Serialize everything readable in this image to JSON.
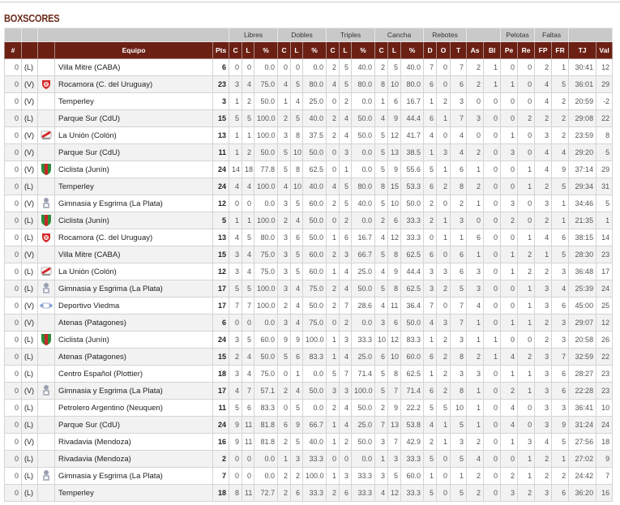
{
  "title": "BOXSCORES",
  "colors": {
    "header_bg": "#6b2013",
    "title": "#6b2a1a",
    "group_bg": "#c9c9c9"
  },
  "groups": [
    "",
    "",
    "",
    "Libres",
    "Dobles",
    "Triples",
    "Cancha",
    "Rebotes",
    "",
    "Pelotas",
    "Faltas",
    ""
  ],
  "columns": [
    "#",
    "",
    "",
    "Equipo",
    "Pts",
    "C",
    "L",
    "%",
    "C",
    "L",
    "%",
    "C",
    "L",
    "%",
    "C",
    "L",
    "%",
    "D",
    "O",
    "T",
    "As",
    "Bl",
    "Pe",
    "Re",
    "FP",
    "FR",
    "TJ",
    "Val"
  ],
  "rows": [
    [
      "0",
      "(L)",
      "",
      "Villa Mitre (CABA)",
      "6",
      "0",
      "0",
      "0.0",
      "0",
      "0",
      "0.0",
      "2",
      "5",
      "40.0",
      "2",
      "5",
      "40.0",
      "7",
      "0",
      "7",
      "2",
      "1",
      "0",
      "0",
      "2",
      "1",
      "30:41",
      "12"
    ],
    [
      "0",
      "(V)",
      "rocamora-logo",
      "Rocamora (C. del Uruguay)",
      "23",
      "3",
      "4",
      "75.0",
      "4",
      "5",
      "80.0",
      "4",
      "5",
      "80.0",
      "8",
      "10",
      "80.0",
      "6",
      "0",
      "6",
      "2",
      "1",
      "1",
      "0",
      "4",
      "5",
      "36:01",
      "29"
    ],
    [
      "0",
      "(V)",
      "",
      "Temperley",
      "3",
      "1",
      "2",
      "50.0",
      "1",
      "4",
      "25.0",
      "0",
      "2",
      "0.0",
      "1",
      "6",
      "16.7",
      "1",
      "2",
      "3",
      "0",
      "0",
      "0",
      "0",
      "4",
      "2",
      "20:59",
      "-2"
    ],
    [
      "0",
      "(L)",
      "",
      "Parque Sur (CdU)",
      "15",
      "5",
      "5",
      "100.0",
      "2",
      "5",
      "40.0",
      "2",
      "4",
      "50.0",
      "4",
      "9",
      "44.4",
      "6",
      "1",
      "7",
      "3",
      "0",
      "0",
      "2",
      "2",
      "2",
      "29:08",
      "22"
    ],
    [
      "0",
      "(V)",
      "la-union-logo",
      "La Unión (Colón)",
      "13",
      "1",
      "1",
      "100.0",
      "3",
      "8",
      "37.5",
      "2",
      "4",
      "50.0",
      "5",
      "12",
      "41.7",
      "4",
      "0",
      "4",
      "0",
      "0",
      "1",
      "0",
      "3",
      "2",
      "23:59",
      "8"
    ],
    [
      "0",
      "(V)",
      "",
      "Parque Sur (CdU)",
      "11",
      "1",
      "2",
      "50.0",
      "5",
      "10",
      "50.0",
      "0",
      "3",
      "0.0",
      "5",
      "13",
      "38.5",
      "1",
      "3",
      "4",
      "2",
      "0",
      "3",
      "0",
      "4",
      "4",
      "29:20",
      "5"
    ],
    [
      "0",
      "(V)",
      "ciclista-logo",
      "Ciclista (Junín)",
      "24",
      "14",
      "18",
      "77.8",
      "5",
      "8",
      "62.5",
      "0",
      "1",
      "0.0",
      "5",
      "9",
      "55.6",
      "5",
      "1",
      "6",
      "1",
      "0",
      "0",
      "1",
      "4",
      "9",
      "37:14",
      "29"
    ],
    [
      "0",
      "(L)",
      "",
      "Temperley",
      "24",
      "4",
      "4",
      "100.0",
      "4",
      "10",
      "40.0",
      "4",
      "5",
      "80.0",
      "8",
      "15",
      "53.3",
      "6",
      "2",
      "8",
      "2",
      "0",
      "0",
      "1",
      "2",
      "5",
      "29:34",
      "31"
    ],
    [
      "0",
      "(V)",
      "gimnasia-logo",
      "Gimnasia y Esgrima (La Plata)",
      "12",
      "0",
      "0",
      "0.0",
      "3",
      "5",
      "60.0",
      "2",
      "5",
      "40.0",
      "5",
      "10",
      "50.0",
      "2",
      "0",
      "2",
      "1",
      "0",
      "3",
      "0",
      "3",
      "1",
      "34:46",
      "5"
    ],
    [
      "0",
      "(L)",
      "ciclista-logo",
      "Ciclista (Junín)",
      "5",
      "1",
      "1",
      "100.0",
      "2",
      "4",
      "50.0",
      "0",
      "2",
      "0.0",
      "2",
      "6",
      "33.3",
      "2",
      "1",
      "3",
      "0",
      "0",
      "2",
      "0",
      "2",
      "1",
      "21:35",
      "1"
    ],
    [
      "0",
      "(L)",
      "rocamora-logo",
      "Rocamora (C. del Uruguay)",
      "13",
      "4",
      "5",
      "80.0",
      "3",
      "6",
      "50.0",
      "1",
      "6",
      "16.7",
      "4",
      "12",
      "33.3",
      "0",
      "1",
      "1",
      "6",
      "0",
      "0",
      "1",
      "4",
      "6",
      "38:15",
      "14"
    ],
    [
      "0",
      "(V)",
      "",
      "Villa Mitre (CABA)",
      "15",
      "3",
      "4",
      "75.0",
      "3",
      "5",
      "60.0",
      "2",
      "3",
      "66.7",
      "5",
      "8",
      "62.5",
      "6",
      "0",
      "6",
      "1",
      "0",
      "1",
      "2",
      "1",
      "5",
      "28:30",
      "23"
    ],
    [
      "0",
      "(L)",
      "la-union-logo",
      "La Unión (Colón)",
      "12",
      "3",
      "4",
      "75.0",
      "3",
      "5",
      "60.0",
      "1",
      "4",
      "25.0",
      "4",
      "9",
      "44.4",
      "3",
      "3",
      "6",
      "3",
      "0",
      "1",
      "2",
      "2",
      "3",
      "36:48",
      "17"
    ],
    [
      "0",
      "(L)",
      "gimnasia-logo",
      "Gimnasia y Esgrima (La Plata)",
      "17",
      "5",
      "5",
      "100.0",
      "3",
      "4",
      "75.0",
      "2",
      "4",
      "50.0",
      "5",
      "8",
      "62.5",
      "3",
      "2",
      "5",
      "3",
      "0",
      "0",
      "1",
      "3",
      "4",
      "25:39",
      "24"
    ],
    [
      "0",
      "(V)",
      "viedma-logo",
      "Deportivo Viedma",
      "17",
      "7",
      "7",
      "100.0",
      "2",
      "4",
      "50.0",
      "2",
      "7",
      "28.6",
      "4",
      "11",
      "36.4",
      "7",
      "0",
      "7",
      "4",
      "0",
      "0",
      "1",
      "3",
      "6",
      "45:00",
      "25"
    ],
    [
      "0",
      "(V)",
      "",
      "Atenas (Patagones)",
      "6",
      "0",
      "0",
      "0.0",
      "3",
      "4",
      "75.0",
      "0",
      "2",
      "0.0",
      "3",
      "6",
      "50.0",
      "4",
      "3",
      "7",
      "1",
      "0",
      "1",
      "1",
      "2",
      "3",
      "29:07",
      "12"
    ],
    [
      "0",
      "(L)",
      "ciclista-logo",
      "Ciclista (Junín)",
      "24",
      "3",
      "5",
      "60.0",
      "9",
      "9",
      "100.0",
      "1",
      "3",
      "33.3",
      "10",
      "12",
      "83.3",
      "1",
      "2",
      "3",
      "1",
      "1",
      "0",
      "0",
      "2",
      "3",
      "20:58",
      "26"
    ],
    [
      "0",
      "(L)",
      "",
      "Atenas (Patagones)",
      "15",
      "2",
      "4",
      "50.0",
      "5",
      "6",
      "83.3",
      "1",
      "4",
      "25.0",
      "6",
      "10",
      "60.0",
      "6",
      "2",
      "8",
      "2",
      "1",
      "4",
      "2",
      "3",
      "7",
      "32:59",
      "22"
    ],
    [
      "0",
      "(L)",
      "",
      "Centro Español (Plottier)",
      "18",
      "3",
      "4",
      "75.0",
      "0",
      "1",
      "0.0",
      "5",
      "7",
      "71.4",
      "5",
      "8",
      "62.5",
      "1",
      "2",
      "3",
      "3",
      "0",
      "1",
      "1",
      "3",
      "6",
      "28:27",
      "23"
    ],
    [
      "0",
      "(V)",
      "gimnasia-logo",
      "Gimnasia y Esgrima (La Plata)",
      "17",
      "4",
      "7",
      "57.1",
      "2",
      "4",
      "50.0",
      "3",
      "3",
      "100.0",
      "5",
      "7",
      "71.4",
      "6",
      "2",
      "8",
      "1",
      "0",
      "2",
      "1",
      "3",
      "6",
      "22:28",
      "23"
    ],
    [
      "0",
      "(L)",
      "",
      "Petrolero Argentino (Neuquen)",
      "11",
      "5",
      "6",
      "83.3",
      "0",
      "5",
      "0.0",
      "2",
      "4",
      "50.0",
      "2",
      "9",
      "22.2",
      "5",
      "5",
      "10",
      "1",
      "0",
      "4",
      "0",
      "3",
      "3",
      "36:41",
      "10"
    ],
    [
      "0",
      "(L)",
      "",
      "Parque Sur (CdU)",
      "24",
      "9",
      "11",
      "81.8",
      "6",
      "9",
      "66.7",
      "1",
      "4",
      "25.0",
      "7",
      "13",
      "53.8",
      "4",
      "1",
      "5",
      "1",
      "0",
      "4",
      "0",
      "3",
      "9",
      "31:24",
      "24"
    ],
    [
      "0",
      "(V)",
      "",
      "Rivadavia (Mendoza)",
      "16",
      "9",
      "11",
      "81.8",
      "2",
      "5",
      "40.0",
      "1",
      "2",
      "50.0",
      "3",
      "7",
      "42.9",
      "2",
      "1",
      "3",
      "2",
      "0",
      "1",
      "3",
      "4",
      "5",
      "27:56",
      "18"
    ],
    [
      "0",
      "(L)",
      "",
      "Rivadavia (Mendoza)",
      "2",
      "0",
      "0",
      "0.0",
      "1",
      "3",
      "33.3",
      "0",
      "0",
      "0.0",
      "1",
      "3",
      "33.3",
      "5",
      "0",
      "5",
      "4",
      "0",
      "0",
      "1",
      "2",
      "1",
      "27:02",
      "9"
    ],
    [
      "0",
      "(L)",
      "gimnasia-logo",
      "Gimnasia y Esgrima (La Plata)",
      "7",
      "0",
      "0",
      "0.0",
      "2",
      "2",
      "100.0",
      "1",
      "3",
      "33.3",
      "3",
      "5",
      "60.0",
      "1",
      "0",
      "1",
      "2",
      "0",
      "2",
      "1",
      "2",
      "2",
      "24:42",
      "7"
    ],
    [
      "0",
      "(L)",
      "",
      "Temperley",
      "18",
      "8",
      "11",
      "72.7",
      "2",
      "6",
      "33.3",
      "2",
      "6",
      "33.3",
      "4",
      "12",
      "33.3",
      "5",
      "0",
      "5",
      "2",
      "0",
      "3",
      "2",
      "3",
      "6",
      "36:20",
      "16"
    ]
  ]
}
